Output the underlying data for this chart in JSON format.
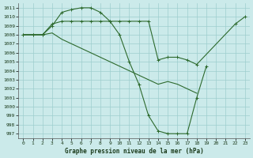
{
  "background_color": "#cbeaea",
  "grid_color": "#9ecece",
  "line_color": "#2d6a2d",
  "title": "Graphe pression niveau de la mer (hPa)",
  "xlim": [
    -0.5,
    23.5
  ],
  "ylim": [
    996.5,
    1011.5
  ],
  "yticks": [
    997,
    998,
    999,
    1000,
    1001,
    1002,
    1003,
    1004,
    1005,
    1006,
    1007,
    1008,
    1009,
    1010,
    1011
  ],
  "xticks": [
    0,
    1,
    2,
    3,
    4,
    5,
    6,
    7,
    8,
    9,
    10,
    11,
    12,
    13,
    14,
    15,
    16,
    17,
    18,
    19,
    20,
    21,
    22,
    23
  ],
  "s1_x": [
    0,
    1,
    2,
    3,
    4,
    5,
    6,
    7,
    8,
    9,
    10,
    11,
    12,
    13,
    14,
    15,
    16,
    17,
    18,
    19
  ],
  "s1_y": [
    1008,
    1008,
    1008,
    1009,
    1010.5,
    1010.8,
    1011,
    1011,
    1010.5,
    1009.5,
    1008,
    1005,
    1002.5,
    999,
    997.3,
    997,
    997,
    997,
    1001,
    1004.5
  ],
  "s2_x": [
    0,
    1,
    2,
    3,
    4,
    5,
    6,
    7,
    8,
    9,
    10,
    11,
    12,
    13,
    14,
    15,
    16,
    17,
    18,
    22,
    23
  ],
  "s2_y": [
    1008,
    1008,
    1008,
    1009.2,
    1009.5,
    1009.5,
    1009.5,
    1009.5,
    1009.5,
    1009.5,
    1009.5,
    1009.5,
    1009.5,
    1009.5,
    1005.2,
    1005.5,
    1005.5,
    1005.2,
    1004.7,
    1009.2,
    1010
  ],
  "s3_x": [
    0,
    1,
    2,
    3,
    4,
    5,
    6,
    7,
    8,
    9,
    10,
    11,
    12,
    13,
    14,
    15,
    16,
    17,
    18
  ],
  "s3_y": [
    1008,
    1008,
    1008,
    1008.2,
    1007.5,
    1007,
    1006.5,
    1006,
    1005.5,
    1005,
    1004.5,
    1004,
    1003.5,
    1003,
    1002.5,
    1002.8,
    1002.5,
    1002,
    1001.5
  ]
}
